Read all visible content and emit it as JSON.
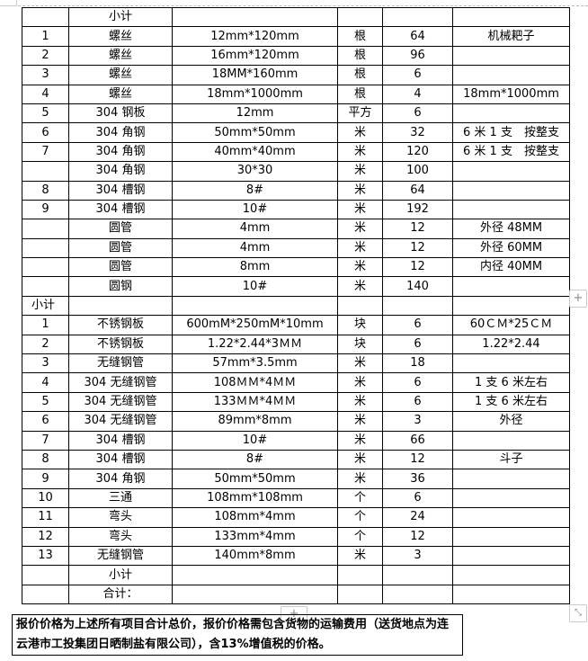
{
  "table": {
    "rows": [
      [
        "",
        "小计",
        "",
        "",
        "",
        ""
      ],
      [
        "1",
        "螺丝",
        "12mm*120mm",
        "根",
        "64",
        "机械耙子"
      ],
      [
        "2",
        "螺丝",
        "16mm*120mm",
        "根",
        "96",
        ""
      ],
      [
        "3",
        "螺丝",
        "18MM*160mm",
        "根",
        "6",
        ""
      ],
      [
        "4",
        "螺丝",
        "18mm*1000mm",
        "根",
        "4",
        "18mm*1000mm"
      ],
      [
        "5",
        "304 钢板",
        "12mm",
        "平方",
        "6",
        ""
      ],
      [
        "6",
        "304 角钢",
        "50mm*50mm",
        "米",
        "32",
        "6 米 1 支　按整支"
      ],
      [
        "7",
        "304 角钢",
        "40mm*40mm",
        "米",
        "120",
        "6 米 1 支　按整支"
      ],
      [
        "",
        "304 角钢",
        "30*30",
        "米",
        "100",
        ""
      ],
      [
        "8",
        "304 槽钢",
        "8#",
        "米",
        "64",
        ""
      ],
      [
        "9",
        "304 槽钢",
        "10#",
        "米",
        "192",
        ""
      ],
      [
        "",
        "圆管",
        "4mm",
        "米",
        "12",
        "外径 48MM"
      ],
      [
        "",
        "圆管",
        "4mm",
        "米",
        "12",
        "外径 60MM"
      ],
      [
        "",
        "圆管",
        "8mm",
        "米",
        "12",
        "内径 40MM"
      ],
      [
        "",
        "圆钢",
        "10#",
        "米",
        "140",
        ""
      ],
      [
        "小计",
        "",
        "",
        "",
        "",
        ""
      ],
      [
        "1",
        "不锈钢板",
        "600mM*250mM*10mm",
        "块",
        "6",
        "60ＣＭ*25ＣＭ"
      ],
      [
        "2",
        "不锈钢板",
        "1.22*2.44*3ＭＭ",
        "块",
        "6",
        "1.22*2.44"
      ],
      [
        "3",
        "无缝钢管",
        "57mm*3.5mm",
        "米",
        "18",
        ""
      ],
      [
        "4",
        "304 无缝钢管",
        "108ＭＭ*4ＭＭ",
        "米",
        "6",
        "1 支 6 米左右"
      ],
      [
        "5",
        "304 无缝钢管",
        "133ＭＭ*4ＭＭ",
        "米",
        "6",
        "1 支 6 米左右"
      ],
      [
        "6",
        "304 无缝钢管",
        "89mm*8mm",
        "米",
        "3",
        "外径"
      ],
      [
        "7",
        "304 槽钢",
        "10#",
        "米",
        "66",
        ""
      ],
      [
        "8",
        "304 槽钢",
        "8#",
        "米",
        "12",
        "斗子"
      ],
      [
        "9",
        "304 角钢",
        "50mm*50mm",
        "米",
        "36",
        ""
      ],
      [
        "10",
        "三通",
        "108mm*108mm",
        "个",
        "6",
        ""
      ],
      [
        "11",
        "弯头",
        "108mm*4mm",
        "个",
        "24",
        ""
      ],
      [
        "12",
        "弯头",
        "133mm*4mm",
        "个",
        "12",
        ""
      ],
      [
        "13",
        "无缝钢管",
        "140mm*8mm",
        "米",
        "3",
        ""
      ],
      [
        "",
        "小计",
        "",
        "",
        "",
        ""
      ],
      [
        "",
        "合计：",
        "",
        "",
        "",
        ""
      ]
    ]
  },
  "note": "报价价格为上述所有项目合计总价，报价价格需包含货物的运输费用（送货地点为连云港市工投集团日晒制盐有限公司），含13%增值税的价格。",
  "controls": {
    "add_column": "+",
    "add_row": "+",
    "resize": "⤡"
  }
}
